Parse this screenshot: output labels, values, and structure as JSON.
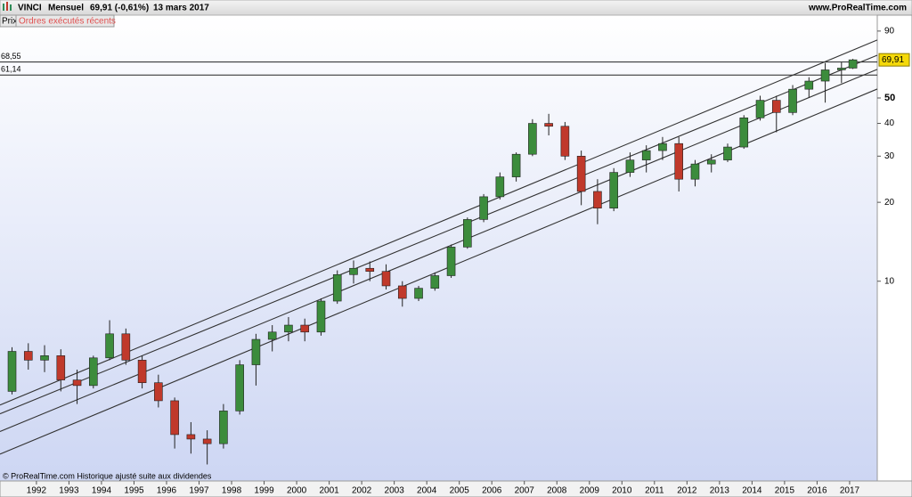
{
  "chart_data": {
    "type": "candlestick",
    "title": "VINCI",
    "period": "Mensuel",
    "last_text": "69,91 (-0,61%)",
    "date": "13 mars 2017",
    "source": "www.ProRealTime.com",
    "tabs": [
      "Prix",
      "Ordres exécutés récents"
    ],
    "footer": "© ProRealTime.com  Historique ajusté suite aux dividendes",
    "log_y": true,
    "up_color": "#3c8c3c",
    "down_color": "#c0392b",
    "x": [
      1991.25,
      1991.75,
      1992.25,
      1992.75,
      1993.25,
      1993.75,
      1994.25,
      1994.75,
      1995.25,
      1995.75,
      1996.25,
      1996.75,
      1997.25,
      1997.75,
      1998.25,
      1998.75,
      1999.25,
      1999.75,
      2000.25,
      2000.75,
      2001.25,
      2001.75,
      2002.25,
      2002.75,
      2003.25,
      2003.75,
      2004.25,
      2004.75,
      2005.25,
      2005.75,
      2006.25,
      2006.75,
      2007.25,
      2007.75,
      2008.25,
      2008.75,
      2009.25,
      2009.75,
      2010.25,
      2010.75,
      2011.25,
      2011.75,
      2012.25,
      2012.75,
      2013.25,
      2013.75,
      2014.25,
      2014.75,
      2015.25,
      2015.75,
      2016.25,
      2016.75,
      2017.1
    ],
    "open": [
      3.8,
      5.4,
      5.0,
      5.2,
      4.2,
      4.0,
      5.1,
      6.3,
      5.0,
      4.1,
      3.5,
      2.6,
      2.5,
      2.4,
      3.2,
      4.8,
      6.0,
      6.4,
      6.8,
      6.4,
      8.4,
      10.6,
      11.2,
      10.9,
      9.6,
      8.6,
      9.4,
      10.5,
      13.5,
      17.2,
      21.0,
      25.0,
      30.5,
      40.0,
      39.0,
      30.0,
      22.0,
      19.0,
      26.0,
      29.0,
      31.5,
      33.5,
      24.5,
      28.0,
      29.0,
      32.5,
      42.0,
      49.0,
      44.0,
      54.0,
      58.0,
      64.0,
      65.0
    ],
    "high": [
      5.6,
      5.8,
      5.7,
      5.5,
      4.6,
      5.2,
      7.1,
      6.6,
      5.2,
      4.4,
      3.6,
      2.9,
      2.7,
      3.4,
      5.0,
      6.3,
      6.8,
      7.3,
      7.2,
      8.6,
      11.0,
      12.0,
      11.9,
      11.6,
      10.0,
      9.6,
      10.8,
      13.8,
      17.5,
      21.5,
      26.0,
      31.0,
      41.5,
      43.5,
      40.5,
      31.5,
      24.5,
      27.0,
      31.0,
      33.0,
      35.5,
      35.5,
      29.0,
      30.5,
      33.5,
      43.0,
      51.0,
      51.0,
      56.0,
      60.0,
      68.0,
      68.5,
      70.5
    ],
    "low": [
      3.7,
      4.6,
      4.5,
      3.8,
      3.4,
      3.9,
      5.0,
      4.8,
      3.9,
      3.3,
      2.3,
      2.2,
      2.0,
      2.3,
      3.1,
      4.0,
      5.4,
      5.9,
      5.9,
      6.2,
      8.2,
      9.8,
      10.0,
      9.3,
      8.0,
      8.4,
      9.2,
      10.3,
      13.3,
      16.8,
      20.5,
      24.0,
      30.0,
      36.0,
      29.0,
      19.5,
      16.5,
      18.5,
      25.0,
      26.0,
      29.0,
      22.0,
      23.0,
      26.0,
      28.5,
      32.0,
      41.0,
      37.0,
      43.0,
      50.0,
      48.0,
      57.0,
      64.5
    ],
    "close": [
      5.4,
      5.0,
      5.2,
      4.2,
      4.0,
      5.1,
      6.3,
      5.0,
      4.1,
      3.5,
      2.6,
      2.5,
      2.4,
      3.2,
      4.8,
      6.0,
      6.4,
      6.8,
      6.4,
      8.4,
      10.6,
      11.2,
      10.9,
      9.6,
      8.6,
      9.4,
      10.5,
      13.5,
      17.2,
      21.0,
      25.0,
      30.5,
      40.0,
      39.0,
      30.0,
      22.0,
      19.0,
      26.0,
      29.0,
      31.5,
      33.5,
      24.5,
      28.0,
      29.0,
      32.5,
      42.0,
      49.0,
      44.0,
      54.0,
      58.0,
      64.0,
      65.0,
      69.91
    ],
    "xlim": [
      1990.88,
      2017.85
    ],
    "xticks": [
      1992,
      1993,
      1994,
      1995,
      1996,
      1997,
      1998,
      1999,
      2000,
      2001,
      2002,
      2003,
      2004,
      2005,
      2006,
      2007,
      2008,
      2009,
      2010,
      2011,
      2012,
      2013,
      2014,
      2015,
      2016,
      2017
    ],
    "ylim": [
      1.73,
      93.5
    ],
    "yticks": [
      90,
      50,
      40,
      30,
      20,
      10
    ],
    "levels": [
      {
        "value": 68.55,
        "label": "68,55"
      },
      {
        "value": 61.14,
        "label": "61,14"
      }
    ],
    "last_label": {
      "value": 69.91,
      "label": "69,91"
    },
    "channel_lines": [
      {
        "x": [
          1990.88,
          2017.85
        ],
        "y": [
          3.37,
          83.2
        ]
      },
      {
        "x": [
          1990.88,
          2017.85
        ],
        "y": [
          3.12,
          72.8
        ]
      },
      {
        "x": [
          1990.88,
          2017.85
        ],
        "y": [
          2.67,
          64.3
        ]
      },
      {
        "x": [
          1990.88,
          2017.85
        ],
        "y": [
          2.19,
          54.1
        ]
      }
    ]
  }
}
